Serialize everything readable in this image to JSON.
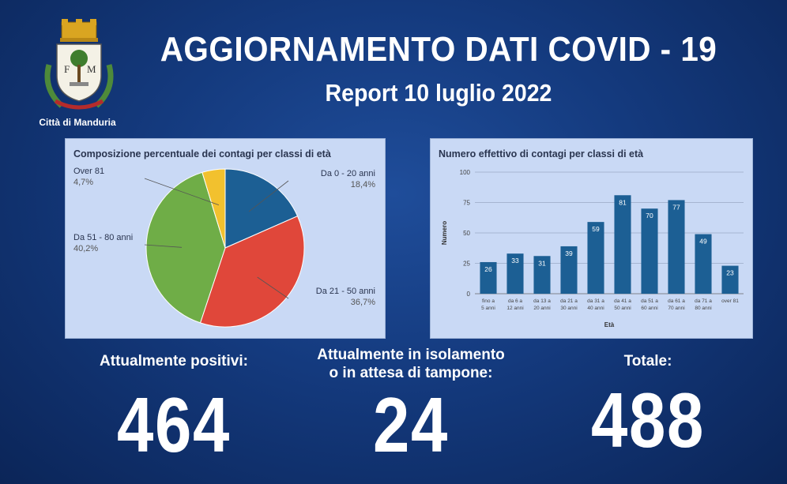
{
  "header": {
    "city": "Città di Manduria",
    "crest_letters": [
      "F",
      "M"
    ],
    "title": "AGGIORNAMENTO DATI COVID - 19",
    "subtitle": "Report 10 luglio 2022"
  },
  "stats": {
    "positivi_label": "Attualmente positivi:",
    "positivi_value": "464",
    "isolamento_label_1": "Attualmente in isolamento",
    "isolamento_label_2": "o in attesa di tampone:",
    "isolamento_value": "24",
    "totale_label": "Totale:",
    "totale_value": "488"
  },
  "colors": {
    "navy": "#143a7e",
    "panel": "#c9d9f5",
    "bar": "#1c5f94"
  },
  "chart_data": [
    {
      "type": "pie",
      "title": "Composizione percentuale dei contagi per classi di età",
      "slices": [
        {
          "label": "Da 0 - 20 anni",
          "value": 18.4,
          "text": "18,4%",
          "color": "#1c5f94"
        },
        {
          "label": "Da 21 - 50 anni",
          "value": 36.7,
          "text": "36,7%",
          "color": "#e0473a"
        },
        {
          "label": "Da 51 - 80 anni",
          "value": 40.2,
          "text": "40,2%",
          "color": "#6fad47"
        },
        {
          "label": "Over 81",
          "value": 4.7,
          "text": "4,7%",
          "color": "#f2c12e"
        }
      ]
    },
    {
      "type": "bar",
      "title": "Numero effettivo di contagi per classi di età",
      "xlabel": "Età",
      "ylabel": "Numero",
      "ylim": [
        0,
        100
      ],
      "yticks": [
        "0",
        "25",
        "50",
        "75",
        "100"
      ],
      "categories": [
        [
          "fino  a",
          "5 anni"
        ],
        [
          "da 6  a",
          "12  anni"
        ],
        [
          "da 13 a",
          "20 anni"
        ],
        [
          "da 21 a",
          "30 anni"
        ],
        [
          "da 31 a",
          "40 anni"
        ],
        [
          "da 41 a",
          "50 anni"
        ],
        [
          "da 51 a",
          "60 anni"
        ],
        [
          "da 61 a",
          "70 anni"
        ],
        [
          "da 71 a",
          "80 anni"
        ],
        [
          "over 81",
          ""
        ]
      ],
      "values": [
        26,
        33,
        31,
        39,
        59,
        81,
        70,
        77,
        49,
        23
      ],
      "grid": true
    }
  ]
}
